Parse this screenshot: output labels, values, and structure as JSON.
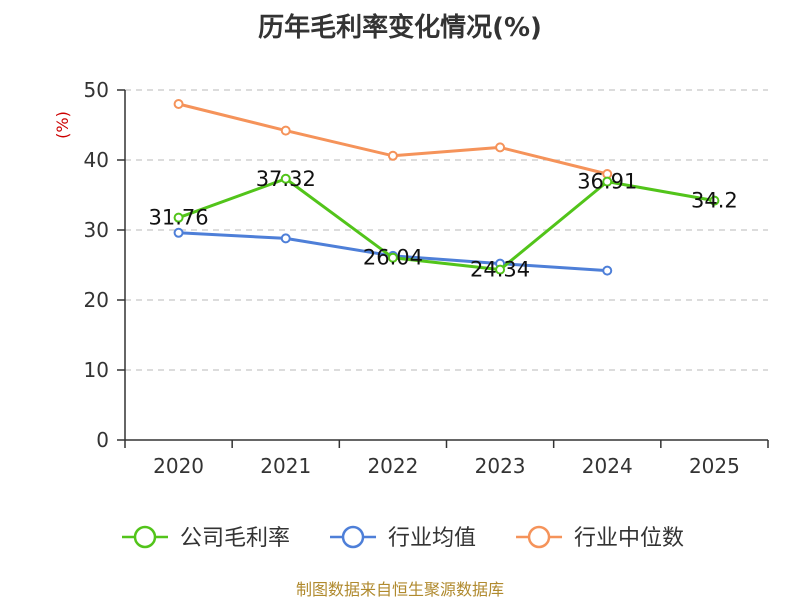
{
  "chart_data": {
    "type": "line",
    "title": "历年毛利率变化情况(%)",
    "ylabel": "(%)",
    "categories": [
      "2020",
      "2021",
      "2022",
      "2023",
      "2024",
      "2025"
    ],
    "ylim": [
      0,
      50
    ],
    "yticks": [
      "0",
      "10",
      "20",
      "30",
      "40",
      "50"
    ],
    "grid": true,
    "legend_position": "bottom",
    "series": [
      {
        "name": "公司毛利率",
        "color": "#52c41a",
        "values": [
          31.76,
          37.32,
          26.04,
          24.34,
          36.91,
          34.2
        ],
        "labels": [
          "31.76",
          "37.32",
          "26.04",
          "24.34",
          "36.91",
          "34.2"
        ]
      },
      {
        "name": "行业均值",
        "color": "#4e7fd8",
        "values": [
          29.6,
          28.8,
          26.3,
          25.2,
          24.2,
          null
        ]
      },
      {
        "name": "行业中位数",
        "color": "#f5935a",
        "values": [
          48.0,
          44.2,
          40.6,
          41.8,
          38.0,
          null
        ]
      }
    ]
  },
  "footer": {
    "source": "制图数据来自恒生聚源数据库"
  }
}
